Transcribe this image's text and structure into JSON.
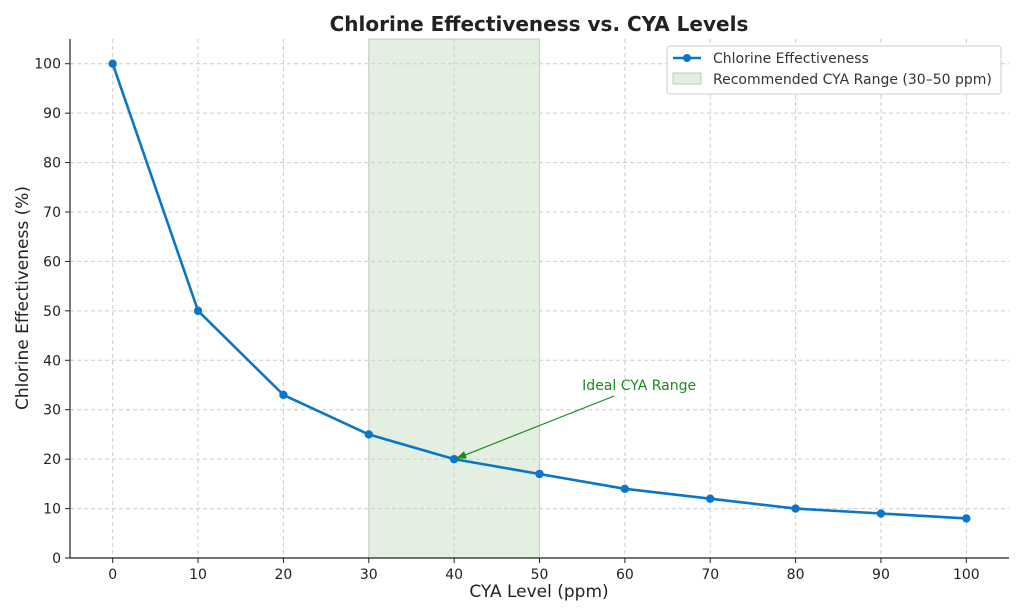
{
  "chart_data": {
    "type": "line",
    "title": "Chlorine Effectiveness vs. CYA Levels",
    "xlabel": "CYA Level (ppm)",
    "ylabel": "Chlorine Effectiveness (%)",
    "x": [
      0,
      10,
      20,
      30,
      40,
      50,
      60,
      70,
      80,
      90,
      100
    ],
    "series": [
      {
        "name": "Chlorine Effectiveness",
        "values": [
          100,
          50,
          33,
          25,
          20,
          17,
          14,
          12,
          10,
          9,
          8
        ],
        "color": "#0b76c8",
        "marker": "circle"
      }
    ],
    "shaded_range": {
      "label": "Recommended CYA Range (30–50 ppm)",
      "x_from": 30,
      "x_to": 50,
      "color": "#e3efe1"
    },
    "annotation": {
      "text": "Ideal CYA Range",
      "text_x": 55,
      "text_y": 35,
      "point_x": 40,
      "point_y": 20,
      "color": "#1a8a1a"
    },
    "xlim": [
      -5,
      105
    ],
    "ylim": [
      0,
      105
    ],
    "xticks": [
      "0",
      "10",
      "20",
      "30",
      "40",
      "50",
      "60",
      "70",
      "80",
      "90",
      "100"
    ],
    "yticks": [
      "0",
      "10",
      "20",
      "30",
      "40",
      "50",
      "60",
      "70",
      "80",
      "90",
      "100"
    ],
    "grid": true,
    "legend_position": "top-right"
  }
}
